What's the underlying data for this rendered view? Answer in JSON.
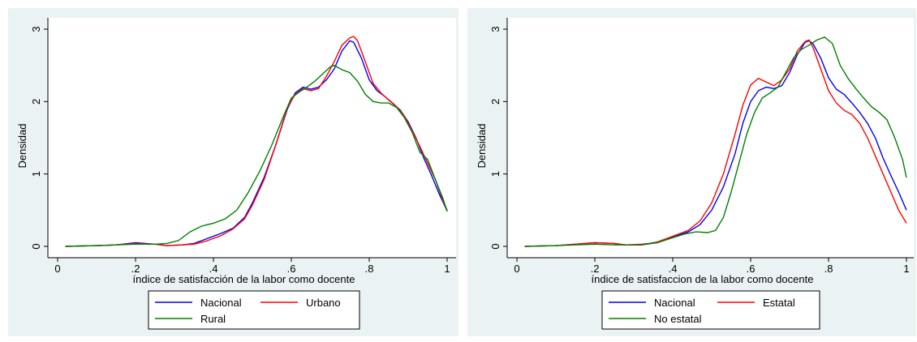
{
  "chart_data": [
    {
      "type": "line",
      "xlabel": "índice de satisfacción de la labor como docente",
      "ylabel": "Densidad",
      "xlim": [
        0,
        1
      ],
      "ylim": [
        0,
        3
      ],
      "xticks": [
        0,
        0.2,
        0.4,
        0.6,
        0.8,
        1
      ],
      "xtick_labels": [
        "0",
        ".2",
        ".4",
        ".6",
        ".8",
        "1"
      ],
      "yticks": [
        0,
        1,
        2,
        3
      ],
      "ytick_labels": [
        "0",
        "1",
        "2",
        "3"
      ],
      "legend": "bottom",
      "series": [
        {
          "name": "Nacional",
          "color": "#0000ff",
          "points": [
            [
              0.02,
              0
            ],
            [
              0.1,
              0.01
            ],
            [
              0.15,
              0.02
            ],
            [
              0.2,
              0.05
            ],
            [
              0.25,
              0.03
            ],
            [
              0.28,
              0.01
            ],
            [
              0.32,
              0.02
            ],
            [
              0.35,
              0.04
            ],
            [
              0.38,
              0.1
            ],
            [
              0.42,
              0.18
            ],
            [
              0.45,
              0.25
            ],
            [
              0.48,
              0.4
            ],
            [
              0.5,
              0.6
            ],
            [
              0.53,
              0.95
            ],
            [
              0.56,
              1.4
            ],
            [
              0.59,
              1.9
            ],
            [
              0.61,
              2.12
            ],
            [
              0.63,
              2.2
            ],
            [
              0.65,
              2.17
            ],
            [
              0.67,
              2.2
            ],
            [
              0.69,
              2.3
            ],
            [
              0.71,
              2.45
            ],
            [
              0.73,
              2.7
            ],
            [
              0.75,
              2.84
            ],
            [
              0.76,
              2.82
            ],
            [
              0.78,
              2.6
            ],
            [
              0.8,
              2.3
            ],
            [
              0.82,
              2.15
            ],
            [
              0.84,
              2.07
            ],
            [
              0.86,
              1.98
            ],
            [
              0.88,
              1.88
            ],
            [
              0.9,
              1.72
            ],
            [
              0.92,
              1.5
            ],
            [
              0.94,
              1.22
            ],
            [
              0.96,
              0.98
            ],
            [
              0.98,
              0.72
            ],
            [
              1.0,
              0.49
            ]
          ]
        },
        {
          "name": "Urbano",
          "color": "#ff0000",
          "points": [
            [
              0.02,
              0
            ],
            [
              0.1,
              0.01
            ],
            [
              0.15,
              0.02
            ],
            [
              0.2,
              0.04
            ],
            [
              0.25,
              0.03
            ],
            [
              0.28,
              0.01
            ],
            [
              0.32,
              0.02
            ],
            [
              0.35,
              0.03
            ],
            [
              0.38,
              0.07
            ],
            [
              0.42,
              0.15
            ],
            [
              0.45,
              0.24
            ],
            [
              0.48,
              0.38
            ],
            [
              0.5,
              0.57
            ],
            [
              0.53,
              0.92
            ],
            [
              0.56,
              1.4
            ],
            [
              0.59,
              1.92
            ],
            [
              0.61,
              2.1
            ],
            [
              0.63,
              2.18
            ],
            [
              0.65,
              2.15
            ],
            [
              0.67,
              2.18
            ],
            [
              0.69,
              2.35
            ],
            [
              0.71,
              2.55
            ],
            [
              0.73,
              2.78
            ],
            [
              0.75,
              2.88
            ],
            [
              0.76,
              2.9
            ],
            [
              0.77,
              2.84
            ],
            [
              0.79,
              2.55
            ],
            [
              0.81,
              2.25
            ],
            [
              0.83,
              2.12
            ],
            [
              0.85,
              2.02
            ],
            [
              0.87,
              1.93
            ],
            [
              0.89,
              1.8
            ],
            [
              0.91,
              1.6
            ],
            [
              0.93,
              1.38
            ],
            [
              0.95,
              1.15
            ],
            [
              0.97,
              0.92
            ],
            [
              0.99,
              0.62
            ],
            [
              1.0,
              0.5
            ]
          ]
        },
        {
          "name": "Rural",
          "color": "#008000",
          "points": [
            [
              0.02,
              0
            ],
            [
              0.1,
              0.01
            ],
            [
              0.15,
              0.02
            ],
            [
              0.2,
              0.03
            ],
            [
              0.25,
              0.03
            ],
            [
              0.28,
              0.04
            ],
            [
              0.31,
              0.08
            ],
            [
              0.34,
              0.2
            ],
            [
              0.37,
              0.28
            ],
            [
              0.4,
              0.32
            ],
            [
              0.43,
              0.38
            ],
            [
              0.46,
              0.5
            ],
            [
              0.49,
              0.75
            ],
            [
              0.52,
              1.05
            ],
            [
              0.55,
              1.4
            ],
            [
              0.58,
              1.8
            ],
            [
              0.6,
              2.05
            ],
            [
              0.62,
              2.13
            ],
            [
              0.64,
              2.2
            ],
            [
              0.66,
              2.28
            ],
            [
              0.68,
              2.38
            ],
            [
              0.7,
              2.48
            ],
            [
              0.71,
              2.5
            ],
            [
              0.73,
              2.44
            ],
            [
              0.75,
              2.4
            ],
            [
              0.77,
              2.28
            ],
            [
              0.79,
              2.1
            ],
            [
              0.81,
              2.0
            ],
            [
              0.83,
              1.98
            ],
            [
              0.85,
              1.98
            ],
            [
              0.87,
              1.92
            ],
            [
              0.89,
              1.78
            ],
            [
              0.91,
              1.58
            ],
            [
              0.93,
              1.3
            ],
            [
              0.95,
              1.2
            ],
            [
              0.97,
              0.92
            ],
            [
              0.99,
              0.65
            ],
            [
              1.0,
              0.48
            ]
          ]
        }
      ]
    },
    {
      "type": "line",
      "xlabel": "índice de satisfaccion de la labor como docente",
      "ylabel": "Densidad",
      "xlim": [
        0,
        1
      ],
      "ylim": [
        0,
        3
      ],
      "xticks": [
        0,
        0.2,
        0.4,
        0.6,
        0.8,
        1
      ],
      "xtick_labels": [
        "0",
        ".2",
        ".4",
        ".6",
        ".8",
        "1"
      ],
      "yticks": [
        0,
        1,
        2,
        3
      ],
      "ytick_labels": [
        "0",
        "1",
        "2",
        "3"
      ],
      "legend": "bottom",
      "series": [
        {
          "name": "Nacional",
          "color": "#0000ff",
          "points": [
            [
              0.02,
              0
            ],
            [
              0.1,
              0.01
            ],
            [
              0.15,
              0.03
            ],
            [
              0.2,
              0.05
            ],
            [
              0.25,
              0.04
            ],
            [
              0.28,
              0.02
            ],
            [
              0.32,
              0.02
            ],
            [
              0.36,
              0.05
            ],
            [
              0.4,
              0.13
            ],
            [
              0.44,
              0.2
            ],
            [
              0.47,
              0.3
            ],
            [
              0.5,
              0.5
            ],
            [
              0.53,
              0.82
            ],
            [
              0.56,
              1.28
            ],
            [
              0.58,
              1.7
            ],
            [
              0.6,
              2.0
            ],
            [
              0.62,
              2.15
            ],
            [
              0.64,
              2.2
            ],
            [
              0.66,
              2.18
            ],
            [
              0.68,
              2.22
            ],
            [
              0.7,
              2.4
            ],
            [
              0.72,
              2.65
            ],
            [
              0.74,
              2.82
            ],
            [
              0.75,
              2.84
            ],
            [
              0.76,
              2.8
            ],
            [
              0.78,
              2.6
            ],
            [
              0.8,
              2.33
            ],
            [
              0.82,
              2.17
            ],
            [
              0.84,
              2.1
            ],
            [
              0.86,
              1.98
            ],
            [
              0.88,
              1.85
            ],
            [
              0.9,
              1.7
            ],
            [
              0.92,
              1.5
            ],
            [
              0.94,
              1.22
            ],
            [
              0.96,
              0.98
            ],
            [
              0.98,
              0.75
            ],
            [
              1.0,
              0.5
            ]
          ]
        },
        {
          "name": "Estatal",
          "color": "#ff0000",
          "points": [
            [
              0.02,
              0
            ],
            [
              0.1,
              0.01
            ],
            [
              0.15,
              0.03
            ],
            [
              0.2,
              0.05
            ],
            [
              0.25,
              0.04
            ],
            [
              0.28,
              0.02
            ],
            [
              0.32,
              0.02
            ],
            [
              0.36,
              0.06
            ],
            [
              0.4,
              0.14
            ],
            [
              0.44,
              0.22
            ],
            [
              0.47,
              0.35
            ],
            [
              0.5,
              0.6
            ],
            [
              0.53,
              1.0
            ],
            [
              0.56,
              1.55
            ],
            [
              0.58,
              1.95
            ],
            [
              0.6,
              2.23
            ],
            [
              0.62,
              2.32
            ],
            [
              0.64,
              2.27
            ],
            [
              0.66,
              2.22
            ],
            [
              0.68,
              2.3
            ],
            [
              0.7,
              2.45
            ],
            [
              0.72,
              2.7
            ],
            [
              0.74,
              2.83
            ],
            [
              0.75,
              2.85
            ],
            [
              0.76,
              2.75
            ],
            [
              0.78,
              2.45
            ],
            [
              0.8,
              2.15
            ],
            [
              0.82,
              1.98
            ],
            [
              0.84,
              1.88
            ],
            [
              0.86,
              1.82
            ],
            [
              0.88,
              1.7
            ],
            [
              0.9,
              1.5
            ],
            [
              0.92,
              1.25
            ],
            [
              0.94,
              1.0
            ],
            [
              0.96,
              0.75
            ],
            [
              0.98,
              0.5
            ],
            [
              1.0,
              0.32
            ]
          ]
        },
        {
          "name": "No estatal",
          "color": "#008000",
          "points": [
            [
              0.02,
              0
            ],
            [
              0.1,
              0.01
            ],
            [
              0.15,
              0.02
            ],
            [
              0.2,
              0.03
            ],
            [
              0.25,
              0.02
            ],
            [
              0.28,
              0.02
            ],
            [
              0.32,
              0.03
            ],
            [
              0.36,
              0.05
            ],
            [
              0.4,
              0.12
            ],
            [
              0.43,
              0.17
            ],
            [
              0.46,
              0.2
            ],
            [
              0.49,
              0.19
            ],
            [
              0.51,
              0.22
            ],
            [
              0.53,
              0.4
            ],
            [
              0.55,
              0.75
            ],
            [
              0.57,
              1.15
            ],
            [
              0.59,
              1.55
            ],
            [
              0.61,
              1.85
            ],
            [
              0.63,
              2.05
            ],
            [
              0.65,
              2.12
            ],
            [
              0.67,
              2.2
            ],
            [
              0.69,
              2.4
            ],
            [
              0.71,
              2.6
            ],
            [
              0.73,
              2.72
            ],
            [
              0.75,
              2.78
            ],
            [
              0.77,
              2.85
            ],
            [
              0.79,
              2.89
            ],
            [
              0.81,
              2.8
            ],
            [
              0.83,
              2.5
            ],
            [
              0.85,
              2.32
            ],
            [
              0.87,
              2.18
            ],
            [
              0.89,
              2.05
            ],
            [
              0.91,
              1.93
            ],
            [
              0.93,
              1.85
            ],
            [
              0.95,
              1.75
            ],
            [
              0.97,
              1.5
            ],
            [
              0.99,
              1.2
            ],
            [
              1.0,
              0.95
            ]
          ]
        }
      ]
    }
  ]
}
